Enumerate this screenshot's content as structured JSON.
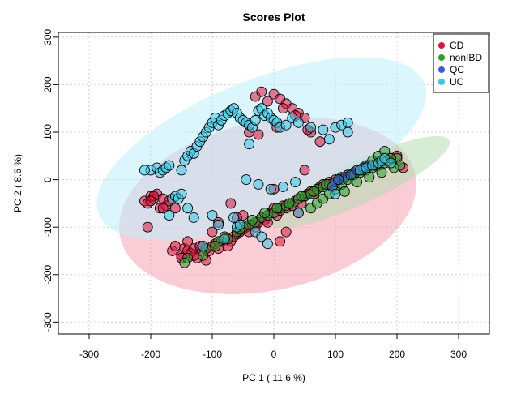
{
  "chart_data": {
    "type": "scatter",
    "title": "Scores Plot",
    "xlabel": "PC 1 ( 11.6 %)",
    "ylabel": "PC 2 ( 8.6 %)",
    "xlim": [
      -350,
      350
    ],
    "ylim": [
      -325,
      310
    ],
    "x_ticks": [
      -300,
      -200,
      -100,
      0,
      100,
      200,
      300
    ],
    "y_ticks": [
      -300,
      -200,
      -100,
      0,
      100,
      200,
      300
    ],
    "grid": true,
    "legend_position": "top-right",
    "series": [
      {
        "name": "CD",
        "color": "#DC143C",
        "ellipse": {
          "cx": -10,
          "cy": -55,
          "rx": 245,
          "ry": 178,
          "angle_deg": 12,
          "fill": "#F4A3B4"
        },
        "x": [
          -210,
          -205,
          -200,
          -195,
          -190,
          -185,
          -180,
          -175,
          -170,
          -205,
          -195,
          -165,
          -160,
          -150,
          -145,
          -140,
          -135,
          -130,
          -125,
          -120,
          -115,
          -110,
          -105,
          -100,
          -95,
          -90,
          -85,
          -80,
          -75,
          -70,
          -65,
          -60,
          -55,
          -50,
          -45,
          -40,
          -35,
          -30,
          -25,
          -20,
          -15,
          -10,
          -5,
          0,
          5,
          10,
          15,
          20,
          25,
          30,
          35,
          40,
          45,
          50,
          55,
          60,
          65,
          70,
          75,
          80,
          90,
          100,
          110,
          120,
          130,
          140,
          150,
          160,
          170,
          180,
          190,
          200,
          210,
          -30,
          -20,
          -10,
          0,
          10,
          20,
          30,
          40,
          50,
          60,
          -40,
          -25,
          5,
          15,
          35,
          55,
          75,
          -200,
          -180,
          -160,
          -100,
          -50,
          0,
          50,
          -90,
          -120,
          -140,
          -130,
          -110,
          -150,
          -60,
          -70,
          10,
          20,
          40
        ],
        "y": [
          -45,
          -50,
          -35,
          -40,
          -30,
          -60,
          -40,
          -55,
          -45,
          -100,
          -35,
          -150,
          -140,
          -160,
          -145,
          -150,
          -155,
          -145,
          -165,
          -150,
          -140,
          -145,
          -150,
          -140,
          -135,
          -145,
          -130,
          -125,
          -140,
          -130,
          -120,
          -115,
          -110,
          -105,
          -100,
          -110,
          -95,
          -100,
          -90,
          -80,
          -85,
          -90,
          -70,
          -60,
          -75,
          -65,
          -55,
          -60,
          -50,
          -55,
          -45,
          -40,
          -50,
          -35,
          -30,
          -25,
          -30,
          -20,
          -15,
          -10,
          -5,
          0,
          5,
          10,
          15,
          20,
          25,
          30,
          35,
          40,
          45,
          50,
          25,
          175,
          185,
          165,
          180,
          170,
          160,
          150,
          140,
          130,
          100,
          100,
          95,
          110,
          150,
          135,
          105,
          80,
          -45,
          -60,
          -60,
          -110,
          -75,
          -20,
          20,
          -90,
          -140,
          -130,
          -160,
          -170,
          -165,
          -80,
          -50,
          -130,
          -110,
          -70
        ],
        "r": 6
      },
      {
        "name": "nonIBD",
        "color": "#2CA02C",
        "ellipse": {
          "cx": 140,
          "cy": -5,
          "rx": 160,
          "ry": 45,
          "angle_deg": 25,
          "fill": "#B5DDB0"
        },
        "x": [
          -110,
          -90,
          -80,
          -60,
          -50,
          -40,
          -30,
          -20,
          -10,
          0,
          10,
          20,
          30,
          40,
          50,
          60,
          70,
          80,
          90,
          100,
          110,
          120,
          130,
          140,
          150,
          160,
          170,
          180,
          190,
          200,
          -140,
          -145,
          -115,
          -95,
          -75,
          -55,
          -35,
          -15,
          5,
          25,
          45,
          65,
          85,
          105,
          125,
          145,
          165,
          185,
          205,
          60,
          70,
          80,
          90,
          100,
          110,
          120,
          130,
          140,
          150,
          160,
          170,
          180,
          190,
          115,
          135,
          155,
          175,
          195
        ],
        "y": [
          -145,
          -130,
          -120,
          -110,
          -100,
          -95,
          -90,
          -80,
          -75,
          -70,
          -60,
          -55,
          -50,
          -40,
          -35,
          -30,
          -20,
          -15,
          -10,
          -5,
          0,
          5,
          10,
          15,
          20,
          25,
          30,
          35,
          40,
          45,
          -165,
          -175,
          -160,
          -140,
          -125,
          -105,
          -85,
          -70,
          -60,
          -50,
          -35,
          -25,
          -10,
          0,
          10,
          20,
          30,
          40,
          30,
          -60,
          -50,
          -40,
          -30,
          -20,
          -10,
          0,
          10,
          20,
          30,
          40,
          50,
          60,
          45,
          -25,
          -5,
          5,
          15,
          25
        ],
        "r": 6
      },
      {
        "name": "QC",
        "color": "#3B5BDB",
        "ellipse": null,
        "x": [
          100,
          115,
          125,
          135,
          145,
          155,
          95,
          105
        ],
        "y": [
          -5,
          5,
          10,
          20,
          25,
          30,
          -15,
          0
        ],
        "r": 6
      },
      {
        "name": "UC",
        "color": "#3BC8E8",
        "ellipse": {
          "cx": -20,
          "cy": 65,
          "rx": 285,
          "ry": 145,
          "angle_deg": 22,
          "fill": "#BDEFFC"
        },
        "x": [
          -200,
          -190,
          -185,
          -180,
          -175,
          -170,
          -165,
          -160,
          -155,
          -150,
          -145,
          -140,
          -135,
          -130,
          -125,
          -120,
          -115,
          -110,
          -105,
          -100,
          -95,
          -90,
          -85,
          -80,
          -75,
          -70,
          -65,
          -60,
          -55,
          -50,
          -45,
          -40,
          -35,
          -30,
          -25,
          -20,
          -15,
          -10,
          -5,
          0,
          5,
          10,
          20,
          30,
          40,
          60,
          80,
          100,
          110,
          120,
          -210,
          -140,
          -100,
          -90,
          -60,
          -55,
          -30,
          -20,
          -10,
          -115,
          -80,
          -150,
          -170,
          -130,
          -65,
          -40,
          40,
          100,
          140,
          150,
          160,
          170,
          175,
          180,
          190,
          120,
          90,
          -45,
          -25,
          -5,
          15,
          35
        ],
        "y": [
          20,
          25,
          15,
          20,
          25,
          30,
          -40,
          -35,
          -40,
          -30,
          40,
          50,
          60,
          55,
          70,
          80,
          90,
          100,
          110,
          120,
          130,
          115,
          125,
          135,
          140,
          145,
          150,
          140,
          130,
          125,
          120,
          115,
          110,
          125,
          145,
          150,
          135,
          140,
          130,
          125,
          120,
          110,
          115,
          130,
          120,
          110,
          105,
          110,
          115,
          120,
          20,
          -60,
          -75,
          -95,
          -100,
          -95,
          -110,
          -120,
          -135,
          -140,
          -125,
          20,
          -75,
          -80,
          -80,
          75,
          -70,
          -30,
          20,
          25,
          30,
          35,
          40,
          45,
          35,
          100,
          85,
          0,
          -10,
          -20,
          -15,
          -5
        ],
        "r": 6
      }
    ]
  }
}
